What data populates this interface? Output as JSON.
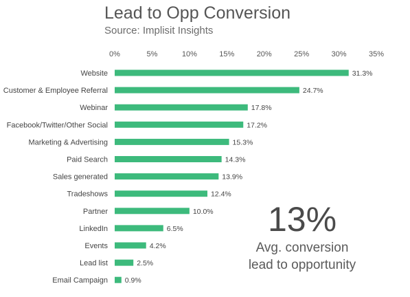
{
  "header": {
    "title": "Lead to Opp Conversion",
    "subtitle": "Source: Implisit Insights"
  },
  "callout": {
    "value": "13%",
    "line1": "Avg. conversion",
    "line2": "lead to opportunity"
  },
  "chart_data": {
    "type": "bar",
    "orientation": "horizontal",
    "title": "Lead to Opp Conversion",
    "subtitle": "Source: Implisit Insights",
    "categories": [
      "Website",
      "Customer & Employee Referral",
      "Webinar",
      "Facebook/Twitter/Other Social",
      "Marketing & Advertising",
      "Paid Search",
      "Sales generated",
      "Tradeshows",
      "Partner",
      "LinkedIn",
      "Events",
      "Lead list",
      "Email Campaign"
    ],
    "values": [
      31.3,
      24.7,
      17.8,
      17.2,
      15.3,
      14.3,
      13.9,
      12.4,
      10.0,
      6.5,
      4.2,
      2.5,
      0.9
    ],
    "value_labels": [
      "31.3%",
      "24.7%",
      "17.8%",
      "17.2%",
      "15.3%",
      "14.3%",
      "13.9%",
      "12.4%",
      "10.0%",
      "6.5%",
      "4.2%",
      "2.5%",
      "0.9%"
    ],
    "xlim": [
      0,
      35
    ],
    "xticks": [
      0,
      5,
      10,
      15,
      20,
      25,
      30,
      35
    ],
    "xtick_labels": [
      "0%",
      "5%",
      "10%",
      "15%",
      "20%",
      "25%",
      "30%",
      "35%"
    ],
    "xaxis_position": "top",
    "grid": false,
    "bar_color": "#3dba7c"
  }
}
